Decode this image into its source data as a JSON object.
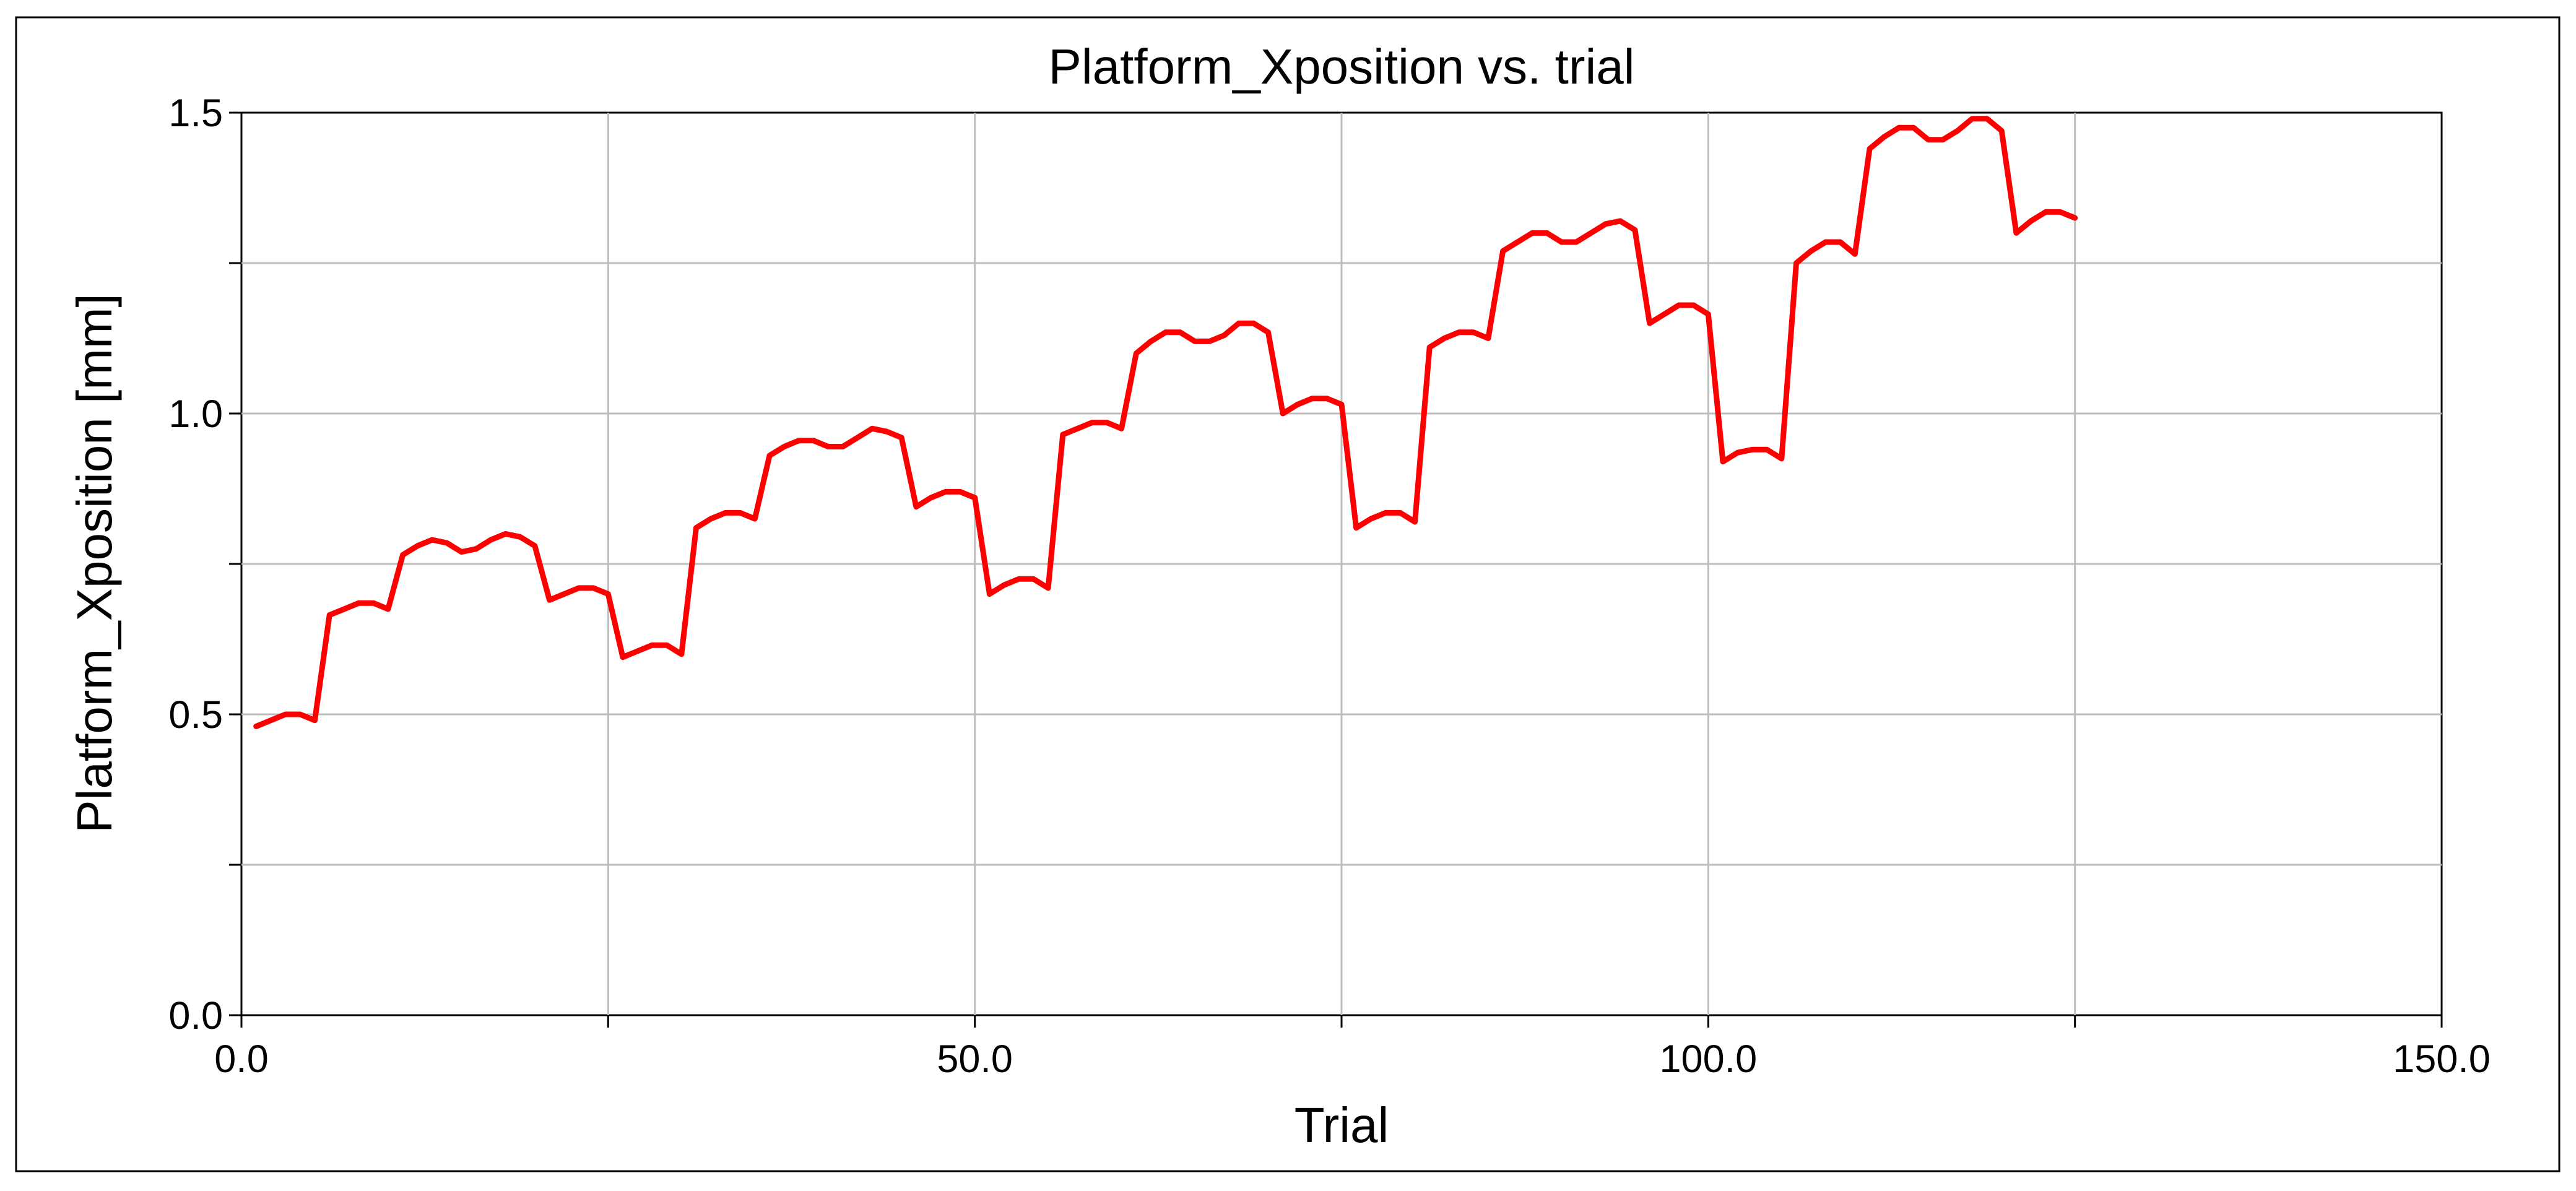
{
  "chart_data": {
    "type": "line",
    "title": "Platform_Xposition vs. trial",
    "xlabel": "Trial",
    "ylabel": "Platform_Xposition [mm]",
    "xlim": [
      0,
      150
    ],
    "ylim": [
      0,
      1.5
    ],
    "x_ticks": [
      {
        "value": 0,
        "label": "0.0"
      },
      {
        "value": 50,
        "label": "50.0"
      },
      {
        "value": 100,
        "label": "100.0"
      },
      {
        "value": 150,
        "label": "150.0"
      }
    ],
    "x_minor_ticks": [
      25,
      75,
      125
    ],
    "y_ticks": [
      {
        "value": 0,
        "label": "0.0"
      },
      {
        "value": 0.5,
        "label": "0.5"
      },
      {
        "value": 1.0,
        "label": "1.0"
      },
      {
        "value": 1.5,
        "label": "1.5"
      }
    ],
    "y_minor_ticks": [
      0.25,
      0.75,
      1.25
    ],
    "grid": true,
    "series": [
      {
        "color": "#ff0000",
        "x": [
          1,
          2,
          3,
          4,
          5,
          6,
          7,
          8,
          9,
          10,
          11,
          12,
          13,
          14,
          15,
          16,
          17,
          18,
          19,
          20,
          21,
          22,
          23,
          24,
          25,
          26,
          27,
          28,
          29,
          30,
          31,
          32,
          33,
          34,
          35,
          36,
          37,
          38,
          39,
          40,
          41,
          42,
          43,
          44,
          45,
          46,
          47,
          48,
          49,
          50,
          51,
          52,
          53,
          54,
          55,
          56,
          57,
          58,
          59,
          60,
          61,
          62,
          63,
          64,
          65,
          66,
          67,
          68,
          69,
          70,
          71,
          72,
          73,
          74,
          75,
          76,
          77,
          78,
          79,
          80,
          81,
          82,
          83,
          84,
          85,
          86,
          87,
          88,
          89,
          90,
          91,
          92,
          93,
          94,
          95,
          96,
          97,
          98,
          99,
          100,
          101,
          102,
          103,
          104,
          105,
          106,
          107,
          108,
          109,
          110,
          111,
          112,
          113,
          114,
          115,
          116,
          117,
          118,
          119,
          120,
          121,
          122,
          123,
          124,
          125
        ],
        "y": [
          0.48,
          0.49,
          0.5,
          0.5,
          0.49,
          0.665,
          0.675,
          0.685,
          0.685,
          0.675,
          0.765,
          0.78,
          0.79,
          0.785,
          0.77,
          0.775,
          0.79,
          0.8,
          0.795,
          0.78,
          0.69,
          0.7,
          0.71,
          0.71,
          0.7,
          0.595,
          0.605,
          0.615,
          0.615,
          0.6,
          0.81,
          0.825,
          0.835,
          0.835,
          0.825,
          0.93,
          0.945,
          0.955,
          0.955,
          0.945,
          0.945,
          0.96,
          0.975,
          0.97,
          0.96,
          0.845,
          0.86,
          0.87,
          0.87,
          0.86,
          0.7,
          0.715,
          0.725,
          0.725,
          0.71,
          0.965,
          0.975,
          0.985,
          0.985,
          0.975,
          1.1,
          1.12,
          1.135,
          1.135,
          1.12,
          1.12,
          1.13,
          1.15,
          1.15,
          1.135,
          1.0,
          1.015,
          1.025,
          1.025,
          1.015,
          0.81,
          0.825,
          0.835,
          0.835,
          0.82,
          1.11,
          1.125,
          1.135,
          1.135,
          1.125,
          1.27,
          1.285,
          1.3,
          1.3,
          1.285,
          1.285,
          1.3,
          1.315,
          1.32,
          1.305,
          1.15,
          1.165,
          1.18,
          1.18,
          1.165,
          0.92,
          0.935,
          0.94,
          0.94,
          0.925,
          1.25,
          1.27,
          1.285,
          1.285,
          1.265,
          1.44,
          1.46,
          1.475,
          1.475,
          1.455,
          1.455,
          1.47,
          1.49,
          1.49,
          1.47,
          1.3,
          1.32,
          1.335,
          1.335,
          1.325
        ]
      }
    ]
  }
}
